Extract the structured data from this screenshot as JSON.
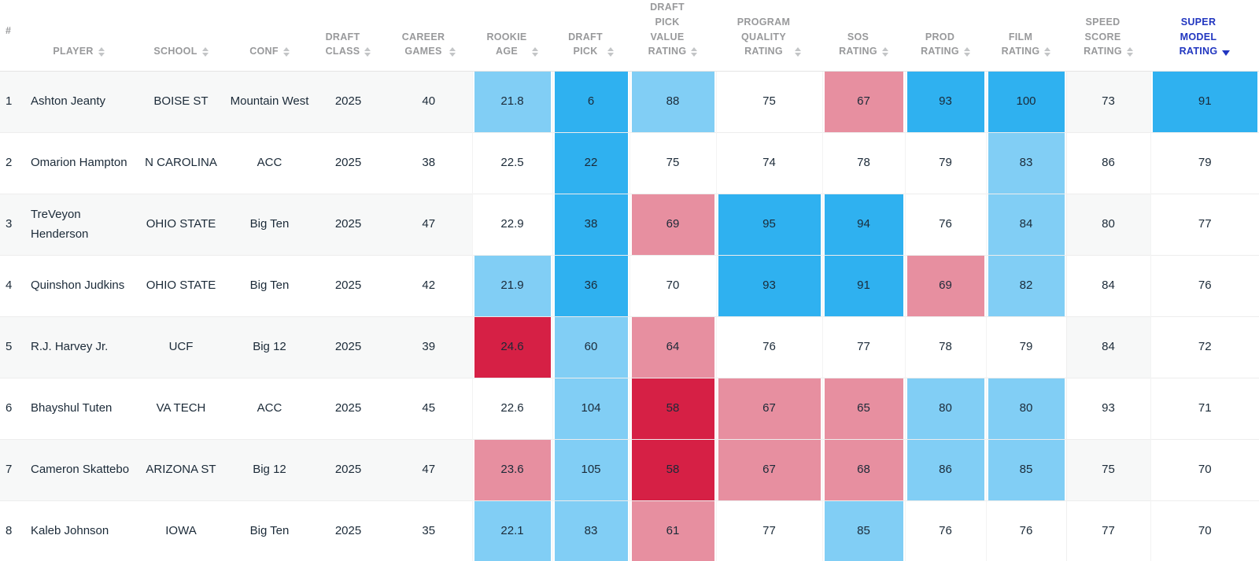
{
  "palette": {
    "blue": "#2fb1f0",
    "lightblue": "#81cef5",
    "pink": "#e78fa0",
    "red": "#d62045",
    "neutral": "#ffffff",
    "header_text": "#98999b",
    "sorted_header": "#2136c0",
    "row_stripe": "#f7f8f8",
    "cell_text": "#1b2a38"
  },
  "table": {
    "columns": [
      {
        "key": "rank",
        "label": "#",
        "sortable": false,
        "heatmap": false
      },
      {
        "key": "player",
        "label": "PLAYER",
        "sortable": true,
        "heatmap": false
      },
      {
        "key": "school",
        "label": "SCHOOL",
        "sortable": true,
        "heatmap": false
      },
      {
        "key": "conf",
        "label": "CONF",
        "sortable": true,
        "heatmap": false
      },
      {
        "key": "draft_class",
        "label": "DRAFT\nCLASS",
        "sortable": true,
        "heatmap": false
      },
      {
        "key": "career_games",
        "label": "CAREER\nGAMES",
        "sortable": true,
        "heatmap": false
      },
      {
        "key": "rookie_age",
        "label": "ROOKIE\nAGE",
        "sortable": true,
        "heatmap": true
      },
      {
        "key": "draft_pick",
        "label": "DRAFT\nPICK",
        "sortable": true,
        "heatmap": true
      },
      {
        "key": "dpv",
        "label": "DRAFT\nPICK\nVALUE\nRATING",
        "sortable": true,
        "heatmap": true
      },
      {
        "key": "pq",
        "label": "PROGRAM\nQUALITY\nRATING",
        "sortable": true,
        "heatmap": true
      },
      {
        "key": "sos",
        "label": "SOS\nRATING",
        "sortable": true,
        "heatmap": true
      },
      {
        "key": "prod",
        "label": "PROD\nRATING",
        "sortable": true,
        "heatmap": true
      },
      {
        "key": "film",
        "label": "FILM\nRATING",
        "sortable": true,
        "heatmap": true
      },
      {
        "key": "speed",
        "label": "SPEED\nSCORE\nRATING",
        "sortable": true,
        "heatmap": false
      },
      {
        "key": "super",
        "label": "SUPER\nMODEL\nRATING",
        "sortable": true,
        "heatmap": true,
        "sorted": "desc"
      }
    ],
    "rows": [
      {
        "rank": "1",
        "player": "Ashton Jeanty",
        "school": "BOISE ST",
        "conf": "Mountain West",
        "draft_class": "2025",
        "career_games": "40",
        "speed": "73",
        "rookie_age": {
          "v": "21.8",
          "c": "lightblue"
        },
        "draft_pick": {
          "v": "6",
          "c": "blue"
        },
        "dpv": {
          "v": "88",
          "c": "lightblue"
        },
        "pq": {
          "v": "75",
          "c": "neutral"
        },
        "sos": {
          "v": "67",
          "c": "pink"
        },
        "prod": {
          "v": "93",
          "c": "blue"
        },
        "film": {
          "v": "100",
          "c": "blue"
        },
        "super": {
          "v": "91",
          "c": "blue"
        }
      },
      {
        "rank": "2",
        "player": "Omarion Hampton",
        "school": "N CAROLINA",
        "conf": "ACC",
        "draft_class": "2025",
        "career_games": "38",
        "speed": "86",
        "rookie_age": {
          "v": "22.5",
          "c": "neutral"
        },
        "draft_pick": {
          "v": "22",
          "c": "blue"
        },
        "dpv": {
          "v": "75",
          "c": "neutral"
        },
        "pq": {
          "v": "74",
          "c": "neutral"
        },
        "sos": {
          "v": "78",
          "c": "neutral"
        },
        "prod": {
          "v": "79",
          "c": "neutral"
        },
        "film": {
          "v": "83",
          "c": "lightblue"
        },
        "super": {
          "v": "79",
          "c": "neutral"
        }
      },
      {
        "rank": "3",
        "player": "TreVeyon Henderson",
        "school": "OHIO STATE",
        "conf": "Big Ten",
        "draft_class": "2025",
        "career_games": "47",
        "speed": "80",
        "rookie_age": {
          "v": "22.9",
          "c": "neutral"
        },
        "draft_pick": {
          "v": "38",
          "c": "blue"
        },
        "dpv": {
          "v": "69",
          "c": "pink"
        },
        "pq": {
          "v": "95",
          "c": "blue"
        },
        "sos": {
          "v": "94",
          "c": "blue"
        },
        "prod": {
          "v": "76",
          "c": "neutral"
        },
        "film": {
          "v": "84",
          "c": "lightblue"
        },
        "super": {
          "v": "77",
          "c": "neutral"
        }
      },
      {
        "rank": "4",
        "player": "Quinshon Judkins",
        "school": "OHIO STATE",
        "conf": "Big Ten",
        "draft_class": "2025",
        "career_games": "42",
        "speed": "84",
        "rookie_age": {
          "v": "21.9",
          "c": "lightblue"
        },
        "draft_pick": {
          "v": "36",
          "c": "blue"
        },
        "dpv": {
          "v": "70",
          "c": "neutral"
        },
        "pq": {
          "v": "93",
          "c": "blue"
        },
        "sos": {
          "v": "91",
          "c": "blue"
        },
        "prod": {
          "v": "69",
          "c": "pink"
        },
        "film": {
          "v": "82",
          "c": "lightblue"
        },
        "super": {
          "v": "76",
          "c": "neutral"
        }
      },
      {
        "rank": "5",
        "player": "R.J. Harvey Jr.",
        "school": "UCF",
        "conf": "Big 12",
        "draft_class": "2025",
        "career_games": "39",
        "speed": "84",
        "rookie_age": {
          "v": "24.6",
          "c": "red"
        },
        "draft_pick": {
          "v": "60",
          "c": "lightblue"
        },
        "dpv": {
          "v": "64",
          "c": "pink"
        },
        "pq": {
          "v": "76",
          "c": "neutral"
        },
        "sos": {
          "v": "77",
          "c": "neutral"
        },
        "prod": {
          "v": "78",
          "c": "neutral"
        },
        "film": {
          "v": "79",
          "c": "neutral"
        },
        "super": {
          "v": "72",
          "c": "neutral"
        }
      },
      {
        "rank": "6",
        "player": "Bhayshul Tuten",
        "school": "VA TECH",
        "conf": "ACC",
        "draft_class": "2025",
        "career_games": "45",
        "speed": "93",
        "rookie_age": {
          "v": "22.6",
          "c": "neutral"
        },
        "draft_pick": {
          "v": "104",
          "c": "lightblue"
        },
        "dpv": {
          "v": "58",
          "c": "red"
        },
        "pq": {
          "v": "67",
          "c": "pink"
        },
        "sos": {
          "v": "65",
          "c": "pink"
        },
        "prod": {
          "v": "80",
          "c": "lightblue"
        },
        "film": {
          "v": "80",
          "c": "lightblue"
        },
        "super": {
          "v": "71",
          "c": "neutral"
        }
      },
      {
        "rank": "7",
        "player": "Cameron Skattebo",
        "school": "ARIZONA ST",
        "conf": "Big 12",
        "draft_class": "2025",
        "career_games": "47",
        "speed": "75",
        "rookie_age": {
          "v": "23.6",
          "c": "pink"
        },
        "draft_pick": {
          "v": "105",
          "c": "lightblue"
        },
        "dpv": {
          "v": "58",
          "c": "red"
        },
        "pq": {
          "v": "67",
          "c": "pink"
        },
        "sos": {
          "v": "68",
          "c": "pink"
        },
        "prod": {
          "v": "86",
          "c": "lightblue"
        },
        "film": {
          "v": "85",
          "c": "lightblue"
        },
        "super": {
          "v": "70",
          "c": "neutral"
        }
      },
      {
        "rank": "8",
        "player": "Kaleb Johnson",
        "school": "IOWA",
        "conf": "Big Ten",
        "draft_class": "2025",
        "career_games": "35",
        "speed": "77",
        "rookie_age": {
          "v": "22.1",
          "c": "lightblue"
        },
        "draft_pick": {
          "v": "83",
          "c": "lightblue"
        },
        "dpv": {
          "v": "61",
          "c": "pink"
        },
        "pq": {
          "v": "77",
          "c": "neutral"
        },
        "sos": {
          "v": "85",
          "c": "lightblue"
        },
        "prod": {
          "v": "76",
          "c": "neutral"
        },
        "film": {
          "v": "76",
          "c": "neutral"
        },
        "super": {
          "v": "70",
          "c": "neutral"
        }
      }
    ]
  }
}
